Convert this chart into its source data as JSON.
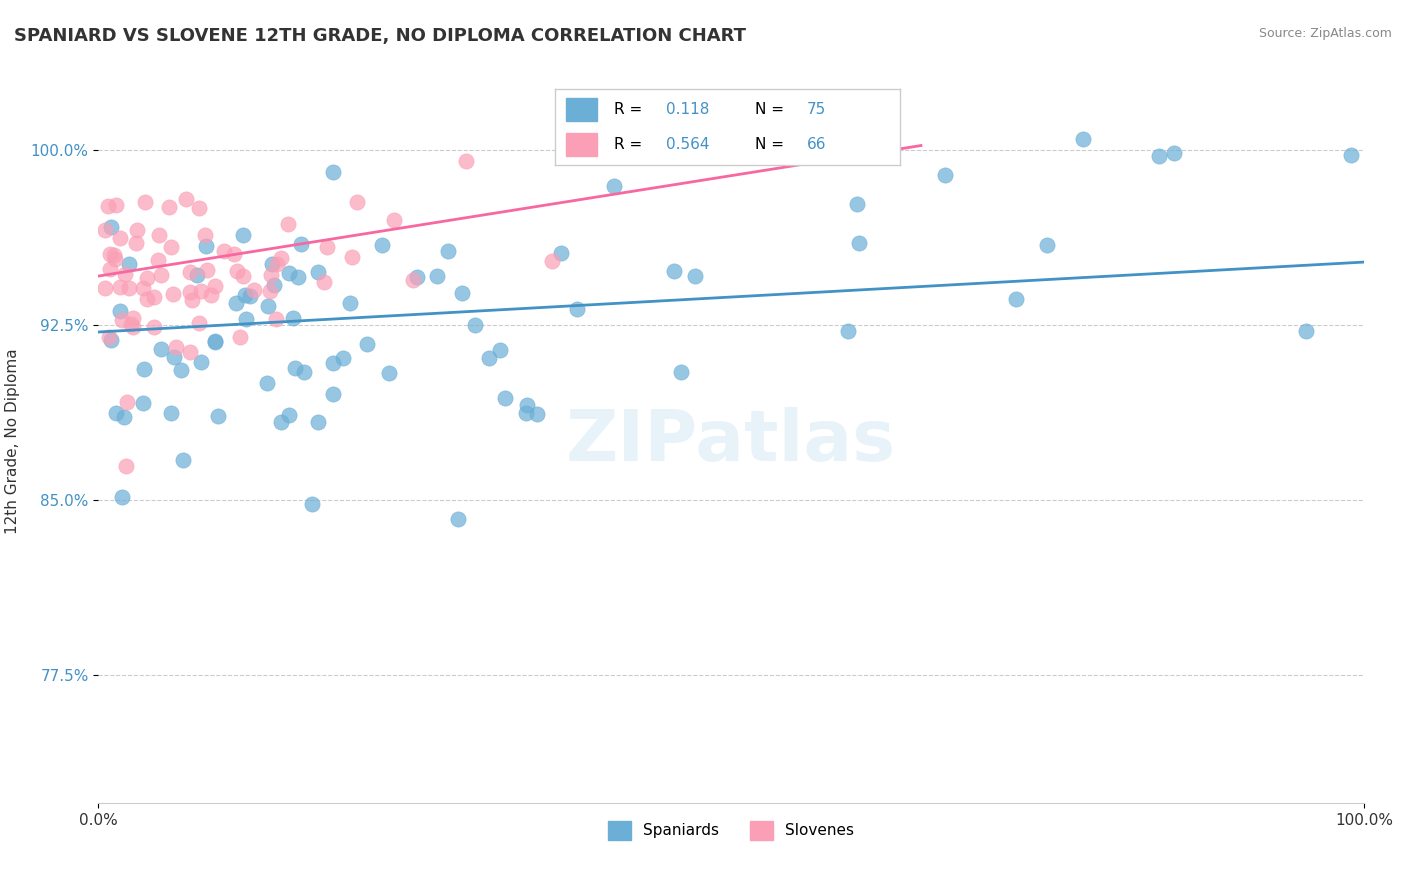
{
  "title": "SPANIARD VS SLOVENE 12TH GRADE, NO DIPLOMA CORRELATION CHART",
  "source_text": "Source: ZipAtlas.com",
  "ylabel": "12th Grade, No Diploma",
  "legend_label1": "Spaniards",
  "legend_label2": "Slovenes",
  "R1": "0.118",
  "N1": "75",
  "R2": "0.564",
  "N2": "66",
  "color_blue": "#6baed6",
  "color_pink": "#fa9fb5",
  "color_blue_line": "#4292c6",
  "color_pink_line": "#f768a1",
  "xlim": [
    0.0,
    1.0
  ],
  "ylim": [
    0.72,
    1.03
  ],
  "blue_line_x": [
    0.0,
    1.0
  ],
  "blue_line_y": [
    0.922,
    0.952
  ],
  "pink_line_x": [
    0.0,
    0.65
  ],
  "pink_line_y": [
    0.946,
    1.002
  ]
}
